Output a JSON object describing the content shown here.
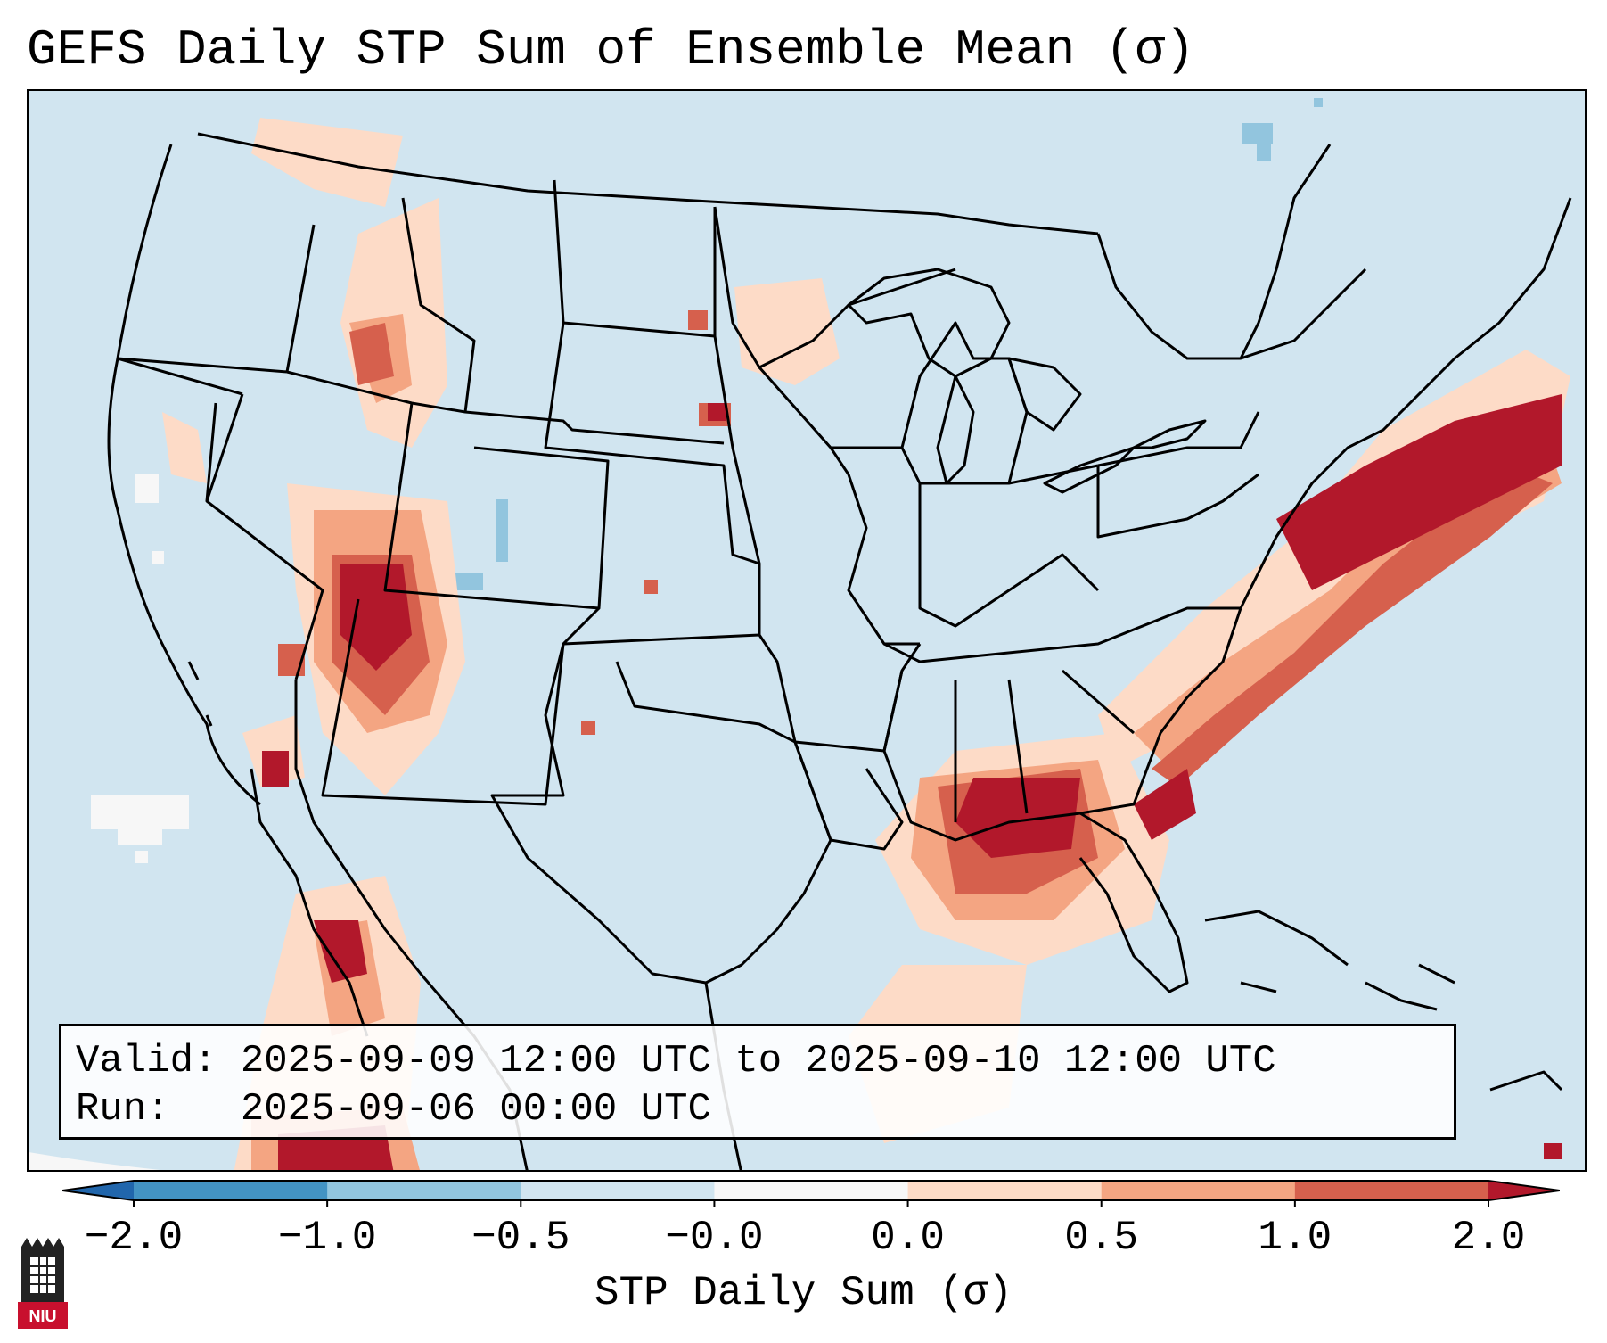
{
  "title": "GEFS Daily STP Sum of Ensemble Mean (σ)",
  "map": {
    "region": "CONUS",
    "background_color": "#d1e5f0",
    "line_color": "#000000",
    "features": [
      "state-borders",
      "coastlines",
      "international-borders"
    ],
    "hotspots": [
      {
        "region": "Arizona / Utah",
        "value": 2.0
      },
      {
        "region": "Western Atlantic off Carolinas",
        "value": 2.0
      },
      {
        "region": "Northeastern Gulf of Mexico",
        "value": 2.0
      },
      {
        "region": "Western Mexico",
        "value": 2.0
      },
      {
        "region": "Nebraska",
        "value": 1.5
      },
      {
        "region": "Idaho / Nevada",
        "value": 1.0
      },
      {
        "region": "Pacific Northwest",
        "value": 0.8
      }
    ]
  },
  "info": {
    "valid_label": "Valid:",
    "valid_text": "2025-09-09 12:00 UTC to 2025-09-10 12:00 UTC",
    "run_label": "Run:",
    "run_text": "2025-09-06 00:00 UTC"
  },
  "colorbar": {
    "label": "STP Daily Sum (σ)",
    "ticks": [
      "−2.0",
      "−1.0",
      "−0.5",
      "−0.0",
      "0.0",
      "0.5",
      "1.0",
      "2.0"
    ],
    "colors": [
      "#4393c3",
      "#92c5de",
      "#d1e5f0",
      "#f7f7f7",
      "#fddbc7",
      "#f4a582",
      "#d6604d"
    ],
    "extend_low_color": "#2166ac",
    "extend_high_color": "#b2182b"
  },
  "logo": {
    "text": "NIU",
    "color": "#c8102e"
  }
}
